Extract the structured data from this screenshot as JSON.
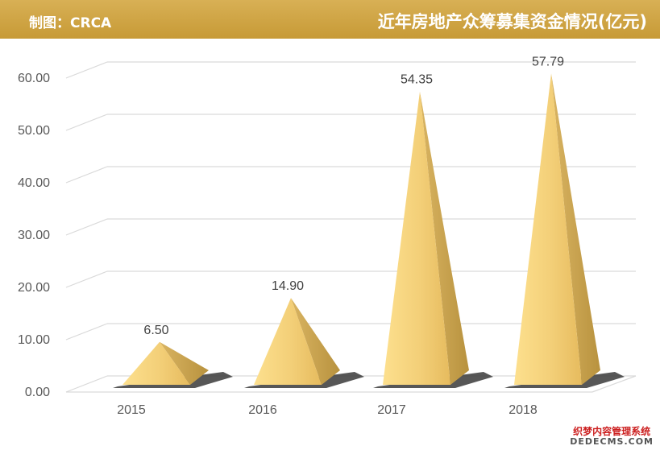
{
  "header": {
    "credit": "制图：CRCA",
    "title": "近年房地产众筹募集资金情况(亿元)"
  },
  "colors": {
    "header_bg": "#cfa446",
    "pyramid_light": "#fde08e",
    "pyramid_dark": "#c9a352",
    "gridline": "#d9d9d9"
  },
  "chart_data": {
    "type": "bar",
    "categories": [
      "2015",
      "2016",
      "2017",
      "2018"
    ],
    "values": [
      6.5,
      14.9,
      54.35,
      57.79
    ],
    "value_labels": [
      "6.50",
      "14.90",
      "54.35",
      "57.79"
    ],
    "y_ticks": [
      "0.00",
      "10.00",
      "20.00",
      "30.00",
      "40.00",
      "50.00",
      "60.00"
    ],
    "ylim": [
      0,
      60
    ],
    "grid": true,
    "style": "3d-pyramid"
  },
  "watermark": {
    "line1": "织梦内容管理系统",
    "line2": "DEDECMS.COM"
  }
}
